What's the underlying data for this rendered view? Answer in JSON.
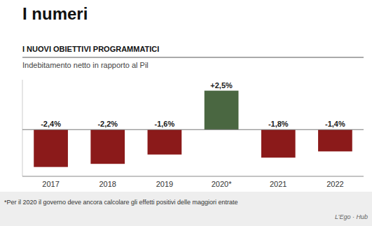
{
  "chart_data": {
    "type": "bar",
    "title": "I numeri",
    "subtitle": "I NUOVI OBIETTIVI PROGRAMMATICI",
    "ylabel": "Indebitamento netto in rapporto al Pil",
    "footnote": "*Per il 2020 il governo deve ancora calcolare gli effetti positivi delle maggiori entrate",
    "source": "L’Ego · Hub",
    "categories": [
      "2017",
      "2018",
      "2019",
      "2020*",
      "2021",
      "2022"
    ],
    "values": [
      -2.4,
      -2.2,
      -1.6,
      2.5,
      -1.8,
      -1.4
    ],
    "value_labels": [
      "-2,4%",
      "-2,2%",
      "-1,6%",
      "+2,5%",
      "-1,8%",
      "-1,4%"
    ],
    "colors": [
      "#8B1A1A",
      "#8B1A1A",
      "#8B1A1A",
      "#4A6741",
      "#8B1A1A",
      "#8B1A1A"
    ],
    "ylim": [
      -3.0,
      3.2
    ],
    "data_labels": true,
    "tick_labels": "x",
    "grid": false
  }
}
